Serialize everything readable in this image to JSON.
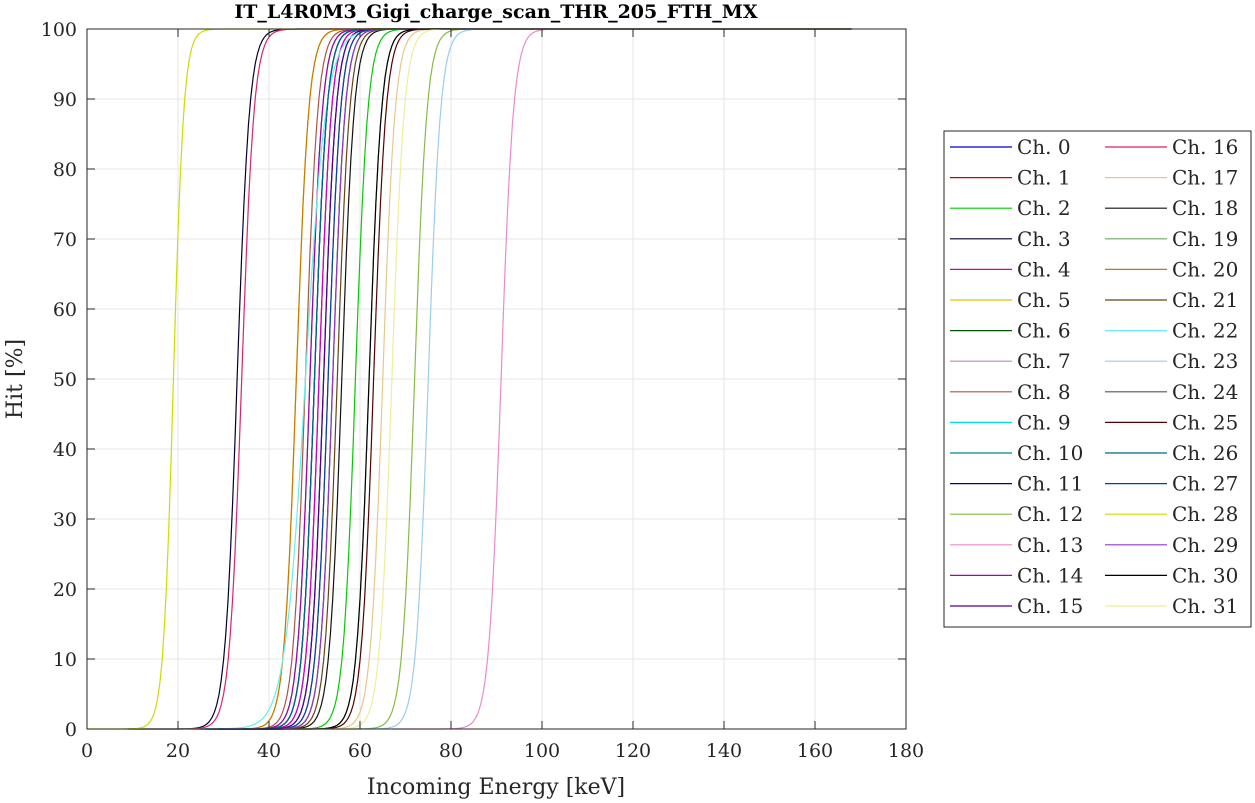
{
  "chart_data": {
    "type": "line",
    "title": "IT_L4R0M3_Gigi_charge_scan_THR_205_FTH_MX",
    "xlabel": "Incoming Energy [keV]",
    "ylabel": "Hit [%]",
    "xlim": [
      0,
      180
    ],
    "ylim": [
      0,
      100
    ],
    "xticks": [
      0,
      20,
      40,
      60,
      80,
      100,
      120,
      140,
      160,
      180
    ],
    "yticks": [
      0,
      10,
      20,
      30,
      40,
      50,
      60,
      70,
      80,
      90,
      100
    ],
    "grid": true,
    "legend_placement": "outside-right",
    "x_max_data": 168,
    "series": [
      {
        "name": "Ch. 0",
        "color": "#0000cc",
        "x50": 52,
        "width": 3.0
      },
      {
        "name": "Ch. 1",
        "color": "#cc0000",
        "x50": 51,
        "width": 3.0
      },
      {
        "name": "Ch. 2",
        "color": "#00cc00",
        "x50": 59,
        "width": 3.0
      },
      {
        "name": "Ch. 3",
        "color": "#000033",
        "x50": 33,
        "width": 3.0
      },
      {
        "name": "Ch. 4",
        "color": "#cc00cc",
        "x50": 51,
        "width": 3.0
      },
      {
        "name": "Ch. 5",
        "color": "#e6c200",
        "x50": 46,
        "width": 3.0
      },
      {
        "name": "Ch. 6",
        "color": "#005500",
        "x50": 54,
        "width": 3.0
      },
      {
        "name": "Ch. 7",
        "color": "#bb88bb",
        "x50": 50,
        "width": 3.0
      },
      {
        "name": "Ch. 8",
        "color": "#aa5544",
        "x50": 48,
        "width": 3.0
      },
      {
        "name": "Ch. 9",
        "color": "#00dddd",
        "x50": 50,
        "width": 3.0
      },
      {
        "name": "Ch. 10",
        "color": "#008888",
        "x50": 49,
        "width": 3.0
      },
      {
        "name": "Ch. 11",
        "color": "#000088",
        "x50": 50,
        "width": 3.0
      },
      {
        "name": "Ch. 12",
        "color": "#88bb44",
        "x50": 72,
        "width": 3.0
      },
      {
        "name": "Ch. 13",
        "color": "#ee88cc",
        "x50": 91,
        "width": 3.0
      },
      {
        "name": "Ch. 14",
        "color": "#aa00aa",
        "x50": 49,
        "width": 3.0
      },
      {
        "name": "Ch. 15",
        "color": "#550088",
        "x50": 52,
        "width": 3.0
      },
      {
        "name": "Ch. 16",
        "color": "#dd2266",
        "x50": 34,
        "width": 3.0
      },
      {
        "name": "Ch. 17",
        "color": "#e6c88a",
        "x50": 65,
        "width": 3.0
      },
      {
        "name": "Ch. 18",
        "color": "#111111",
        "x50": 56,
        "width": 3.0
      },
      {
        "name": "Ch. 19",
        "color": "#66aa66",
        "x50": 62,
        "width": 3.0
      },
      {
        "name": "Ch. 20",
        "color": "#cc7700",
        "x50": 46,
        "width": 3.0
      },
      {
        "name": "Ch. 21",
        "color": "#664411",
        "x50": 55,
        "width": 3.0
      },
      {
        "name": "Ch. 22",
        "color": "#66eeee",
        "x50": 48,
        "width": 5.0
      },
      {
        "name": "Ch. 23",
        "color": "#99ccee",
        "x50": 75,
        "width": 3.0
      },
      {
        "name": "Ch. 24",
        "color": "#555555",
        "x50": 53,
        "width": 3.0
      },
      {
        "name": "Ch. 25",
        "color": "#550000",
        "x50": 63,
        "width": 3.0
      },
      {
        "name": "Ch. 26",
        "color": "#006688",
        "x50": 50,
        "width": 3.0
      },
      {
        "name": "Ch. 27",
        "color": "#0044aa",
        "x50": 53,
        "width": 3.0
      },
      {
        "name": "Ch. 28",
        "color": "#ccdd00",
        "x50": 19,
        "width": 2.5
      },
      {
        "name": "Ch. 29",
        "color": "#9933cc",
        "x50": 54,
        "width": 3.0
      },
      {
        "name": "Ch. 30",
        "color": "#000000",
        "x50": 62,
        "width": 3.0
      },
      {
        "name": "Ch. 31",
        "color": "#eeee99",
        "x50": 67,
        "width": 3.0
      }
    ]
  }
}
